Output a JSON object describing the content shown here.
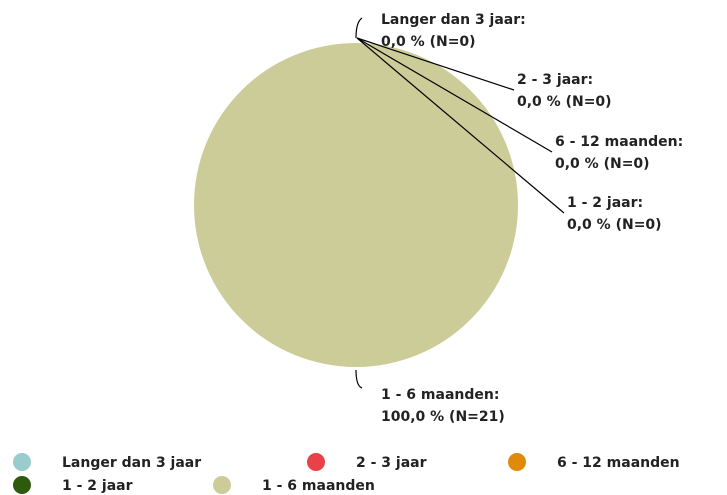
{
  "chart_data": {
    "type": "pie",
    "categories": [
      "Langer dan 3 jaar",
      "2 - 3 jaar",
      "6 - 12 maanden",
      "1 - 2 jaar",
      "1 - 6 maanden"
    ],
    "label_names": [
      "Langer dan 3 jaar:",
      "2 - 3 jaar:",
      "6 - 12 maanden:",
      "1 - 2 jaar:",
      "1 - 6 maanden:"
    ],
    "values": [
      0,
      0,
      0,
      0,
      100
    ],
    "value_labels": [
      "0,0 % (N=0)",
      "0,0 % (N=0)",
      "0,0 % (N=0)",
      "0,0 % (N=0)",
      "100,0 % (N=21)"
    ],
    "colors": [
      "#99cccc",
      "#e8414a",
      "#e08a0b",
      "#2d5a0c",
      "#cccc99"
    ],
    "legend": "bottom"
  }
}
